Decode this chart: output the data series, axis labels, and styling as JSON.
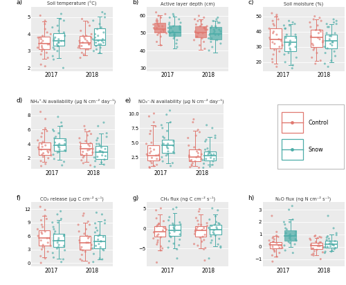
{
  "panels": [
    {
      "label": "a)",
      "title": "Soil temperature (°C)",
      "ylim": [
        1.8,
        5.6
      ],
      "yticks": [
        2.0,
        3.0,
        4.0,
        5.0
      ],
      "control_2017": {
        "median": 3.45,
        "q1": 3.1,
        "q3": 3.85,
        "whislo": 2.55,
        "whishi": 4.75
      },
      "snow_2017": {
        "median": 3.6,
        "q1": 3.3,
        "q3": 4.05,
        "whislo": 2.6,
        "whishi": 4.95
      },
      "control_2018": {
        "median": 3.5,
        "q1": 3.15,
        "q3": 3.9,
        "whislo": 2.75,
        "whishi": 4.8
      },
      "snow_2018": {
        "median": 3.65,
        "q1": 3.35,
        "q3": 4.35,
        "whislo": 2.85,
        "whishi": 5.05
      },
      "shaded_control_2017": false,
      "shaded_snow_2017": false,
      "shaded_control_2018": false,
      "shaded_snow_2018": false,
      "scatter_control_2017": [
        3.8,
        3.4,
        3.2,
        3.6,
        3.0,
        4.1,
        3.5,
        3.3,
        3.7,
        2.8,
        4.3,
        3.1,
        3.9,
        4.0,
        3.2,
        2.6,
        4.6,
        3.4,
        3.8,
        2.9,
        2.2,
        5.1,
        4.8,
        2.1
      ],
      "scatter_snow_2017": [
        3.7,
        3.5,
        3.8,
        3.4,
        3.2,
        4.2,
        3.6,
        3.9,
        3.3,
        4.5,
        3.1,
        4.8,
        3.7,
        3.5,
        4.1,
        2.7,
        5.2,
        3.3,
        2.5,
        4.4,
        3.6,
        3.0,
        4.9,
        2.0
      ],
      "scatter_control_2018": [
        3.6,
        3.3,
        3.8,
        3.5,
        3.1,
        3.9,
        3.4,
        3.7,
        3.2,
        4.0,
        3.6,
        3.8,
        3.3,
        4.2,
        3.5,
        2.9,
        4.7,
        3.1,
        2.6,
        4.5,
        3.4,
        3.9,
        2.8,
        4.9
      ],
      "scatter_snow_2018": [
        3.9,
        3.5,
        4.0,
        3.7,
        3.3,
        4.4,
        3.6,
        4.1,
        3.8,
        3.4,
        4.6,
        3.2,
        4.3,
        3.7,
        3.5,
        3.0,
        5.0,
        3.4,
        2.9,
        5.2,
        4.8,
        3.6,
        3.1,
        5.3
      ]
    },
    {
      "label": "b)",
      "title": "Active layer depth (cm)",
      "ylim": [
        28.0,
        65.0
      ],
      "yticks": [
        30.0,
        40.0,
        50.0,
        60.0
      ],
      "control_2017": {
        "median": 52.5,
        "q1": 50.5,
        "q3": 56.0,
        "whislo": 43.0,
        "whishi": 60.5
      },
      "snow_2017": {
        "median": 50.5,
        "q1": 48.5,
        "q3": 54.5,
        "whislo": 41.0,
        "whishi": 59.5
      },
      "control_2018": {
        "median": 50.5,
        "q1": 47.5,
        "q3": 54.0,
        "whislo": 40.5,
        "whishi": 58.0
      },
      "snow_2018": {
        "median": 49.5,
        "q1": 46.5,
        "q3": 53.5,
        "whislo": 39.0,
        "whishi": 57.0
      },
      "shaded_control_2017": true,
      "shaded_snow_2017": true,
      "shaded_control_2018": true,
      "shaded_snow_2018": true,
      "scatter_control_2017": [
        53,
        51,
        55,
        50,
        57,
        52,
        56,
        49,
        58,
        53,
        51,
        54,
        60,
        50,
        55,
        52,
        48,
        61,
        57,
        54,
        45,
        62,
        43,
        59
      ],
      "scatter_snow_2017": [
        50,
        49,
        53,
        51,
        55,
        48,
        52,
        56,
        47,
        54,
        50,
        53,
        59,
        49,
        54,
        51,
        46,
        60,
        56,
        53,
        42,
        61,
        44,
        58
      ],
      "scatter_control_2018": [
        51,
        48,
        54,
        50,
        55,
        47,
        53,
        57,
        46,
        52,
        50,
        54,
        58,
        48,
        53,
        50,
        45,
        59,
        55,
        52,
        41,
        60,
        43,
        57
      ],
      "scatter_snow_2018": [
        50,
        47,
        53,
        49,
        54,
        46,
        52,
        56,
        45,
        51,
        49,
        53,
        57,
        47,
        52,
        49,
        44,
        58,
        54,
        51,
        40,
        59,
        42,
        56
      ]
    },
    {
      "label": "c)",
      "title": "Soil moisture (%)",
      "ylim": [
        14.0,
        56.0
      ],
      "yticks": [
        20.0,
        30.0,
        40.0,
        50.0
      ],
      "control_2017": {
        "median": 35.0,
        "q1": 29.0,
        "q3": 42.0,
        "whislo": 19.0,
        "whishi": 50.0
      },
      "snow_2017": {
        "median": 33.0,
        "q1": 27.0,
        "q3": 37.0,
        "whislo": 18.0,
        "whishi": 45.0
      },
      "control_2018": {
        "median": 36.0,
        "q1": 30.0,
        "q3": 41.0,
        "whislo": 21.0,
        "whishi": 48.0
      },
      "snow_2018": {
        "median": 34.0,
        "q1": 29.0,
        "q3": 38.0,
        "whislo": 20.0,
        "whishi": 45.0
      },
      "shaded_control_2017": false,
      "shaded_snow_2017": false,
      "shaded_control_2018": false,
      "shaded_snow_2018": false,
      "scatter_control_2017": [
        36,
        30,
        42,
        28,
        45,
        35,
        39,
        25,
        47,
        33,
        38,
        32,
        44,
        31,
        40,
        27,
        50,
        34,
        22,
        48,
        20,
        52,
        17,
        51
      ],
      "scatter_snow_2017": [
        34,
        28,
        38,
        26,
        42,
        32,
        36,
        23,
        44,
        31,
        36,
        30,
        42,
        29,
        38,
        25,
        46,
        32,
        20,
        44,
        18,
        47,
        16,
        45
      ],
      "scatter_control_2018": [
        37,
        31,
        41,
        29,
        44,
        36,
        40,
        26,
        46,
        34,
        39,
        33,
        43,
        32,
        41,
        28,
        49,
        35,
        23,
        47,
        21,
        50,
        19,
        48
      ],
      "scatter_snow_2018": [
        35,
        29,
        39,
        27,
        43,
        33,
        37,
        24,
        45,
        32,
        37,
        31,
        43,
        30,
        39,
        26,
        47,
        33,
        21,
        45,
        19,
        48,
        17,
        46
      ]
    },
    {
      "label": "d)",
      "title": "NH₄⁺-N availability (μg N cm⁻² day⁻¹)",
      "ylim": [
        0.5,
        9.5
      ],
      "yticks": [
        2.0,
        4.0,
        6.0,
        8.0
      ],
      "control_2017": {
        "median": 3.2,
        "q1": 2.5,
        "q3": 4.2,
        "whislo": 1.5,
        "whishi": 6.0
      },
      "snow_2017": {
        "median": 3.8,
        "q1": 3.0,
        "q3": 4.8,
        "whislo": 1.8,
        "whishi": 6.5
      },
      "control_2018": {
        "median": 3.3,
        "q1": 2.5,
        "q3": 4.1,
        "whislo": 1.5,
        "whishi": 5.8
      },
      "snow_2018": {
        "median": 2.8,
        "q1": 1.9,
        "q3": 3.7,
        "whislo": 1.2,
        "whishi": 5.5
      },
      "shaded_control_2017": false,
      "shaded_snow_2017": false,
      "shaded_control_2018": false,
      "shaded_snow_2018": false,
      "scatter_control_2017": [
        3.5,
        2.8,
        4.5,
        2.2,
        5.5,
        3.0,
        4.0,
        2.5,
        5.0,
        3.2,
        3.8,
        2.7,
        4.3,
        2.4,
        3.6,
        2.0,
        6.2,
        3.1,
        1.6,
        5.8,
        0.9,
        8.5,
        7.5,
        1.2
      ],
      "scatter_snow_2017": [
        4.0,
        3.2,
        5.0,
        2.8,
        5.8,
        3.5,
        4.5,
        3.0,
        5.5,
        3.8,
        4.2,
        3.1,
        4.8,
        2.9,
        4.0,
        2.5,
        6.5,
        3.6,
        1.9,
        6.0,
        1.0,
        7.8,
        7.0,
        1.5
      ],
      "scatter_control_2018": [
        3.6,
        2.9,
        4.4,
        2.3,
        5.2,
        3.1,
        4.1,
        2.6,
        4.8,
        3.3,
        3.9,
        2.8,
        4.2,
        2.5,
        3.7,
        2.1,
        5.8,
        3.2,
        1.7,
        5.4,
        1.0,
        6.5,
        6.0,
        1.3
      ],
      "scatter_snow_2018": [
        3.0,
        2.2,
        4.0,
        1.8,
        4.8,
        2.8,
        3.8,
        2.3,
        4.5,
        3.0,
        3.5,
        2.4,
        4.0,
        2.1,
        3.3,
        1.6,
        5.5,
        2.9,
        1.4,
        5.0,
        0.8,
        7.0,
        6.5,
        1.1
      ]
    },
    {
      "label": "e)",
      "title": "NO₃⁻-N availability (μg N cm⁻² day⁻¹)",
      "ylim": [
        0.5,
        11.5
      ],
      "yticks": [
        2.5,
        5.0,
        7.5,
        10.0
      ],
      "control_2017": {
        "median": 2.8,
        "q1": 2.0,
        "q3": 4.5,
        "whislo": 1.0,
        "whishi": 8.0
      },
      "snow_2017": {
        "median": 4.5,
        "q1": 3.2,
        "q3": 5.5,
        "whislo": 1.5,
        "whishi": 8.5
      },
      "control_2018": {
        "median": 2.5,
        "q1": 1.8,
        "q3": 3.8,
        "whislo": 1.0,
        "whishi": 7.0
      },
      "snow_2018": {
        "median": 2.8,
        "q1": 2.0,
        "q3": 3.5,
        "whislo": 1.2,
        "whishi": 6.0
      },
      "shaded_control_2017": false,
      "shaded_snow_2017": false,
      "shaded_control_2018": false,
      "shaded_snow_2018": false,
      "scatter_control_2017": [
        3.0,
        2.2,
        4.8,
        1.5,
        7.0,
        2.8,
        4.0,
        1.8,
        6.5,
        3.2,
        3.8,
        2.4,
        5.0,
        2.1,
        3.5,
        1.2,
        8.5,
        2.9,
        0.8,
        7.8,
        0.7,
        9.5,
        10.0,
        1.0
      ],
      "scatter_snow_2017": [
        4.8,
        3.5,
        5.8,
        2.8,
        7.5,
        4.0,
        5.2,
        3.2,
        7.0,
        4.5,
        4.8,
        3.4,
        6.0,
        3.0,
        4.5,
        2.5,
        8.5,
        4.2,
        1.8,
        8.0,
        1.0,
        9.8,
        10.5,
        1.5
      ],
      "scatter_control_2018": [
        2.8,
        2.0,
        4.2,
        1.5,
        6.2,
        2.5,
        3.8,
        1.8,
        5.8,
        3.0,
        3.5,
        2.2,
        4.5,
        1.9,
        3.2,
        1.2,
        7.2,
        2.7,
        0.8,
        6.8,
        0.7,
        8.5,
        9.0,
        1.0
      ],
      "scatter_snow_2018": [
        3.0,
        2.2,
        3.8,
        1.8,
        5.5,
        2.8,
        3.5,
        2.2,
        5.2,
        3.2,
        3.3,
        2.4,
        4.0,
        2.0,
        3.0,
        1.4,
        6.2,
        3.0,
        0.9,
        5.8,
        0.7,
        7.5,
        8.0,
        1.2
      ]
    },
    {
      "label": "f)",
      "title": "CO₂ release (μg C cm⁻² s⁻¹)",
      "ylim": [
        -0.8,
        13.5
      ],
      "yticks": [
        0.0,
        3.0,
        6.0,
        9.0,
        12.0
      ],
      "control_2017": {
        "median": 5.5,
        "q1": 3.8,
        "q3": 7.2,
        "whislo": 1.2,
        "whishi": 10.5
      },
      "snow_2017": {
        "median": 5.0,
        "q1": 3.5,
        "q3": 6.5,
        "whislo": 0.9,
        "whishi": 9.5
      },
      "control_2018": {
        "median": 4.5,
        "q1": 3.0,
        "q3": 6.0,
        "whislo": 0.5,
        "whishi": 9.0
      },
      "snow_2018": {
        "median": 4.8,
        "q1": 3.2,
        "q3": 6.2,
        "whislo": 0.8,
        "whishi": 9.2
      },
      "shaded_control_2017": false,
      "shaded_snow_2017": false,
      "shaded_control_2018": false,
      "shaded_snow_2018": false,
      "scatter_control_2017": [
        6.0,
        4.5,
        7.5,
        3.5,
        8.5,
        5.5,
        6.8,
        3.0,
        9.5,
        5.0,
        7.0,
        4.0,
        8.0,
        3.8,
        6.5,
        2.5,
        10.5,
        5.5,
        1.5,
        9.8,
        0.0,
        12.5,
        11.8,
        1.0
      ],
      "scatter_snow_2017": [
        5.5,
        4.0,
        7.0,
        3.2,
        8.0,
        5.0,
        6.2,
        2.8,
        9.0,
        4.5,
        6.5,
        3.8,
        7.5,
        3.5,
        6.0,
        2.2,
        9.8,
        5.0,
        1.2,
        9.0,
        0.2,
        10.8,
        11.5,
        0.8
      ],
      "scatter_control_2018": [
        5.0,
        3.5,
        6.5,
        2.8,
        7.5,
        4.5,
        5.8,
        2.5,
        8.5,
        4.0,
        6.0,
        3.2,
        7.0,
        3.0,
        5.5,
        1.8,
        9.2,
        4.5,
        0.8,
        8.5,
        0.0,
        10.5,
        11.0,
        0.5
      ],
      "scatter_snow_2018": [
        5.2,
        3.8,
        6.8,
        3.0,
        7.8,
        4.8,
        6.0,
        2.8,
        8.8,
        4.2,
        6.2,
        3.5,
        7.2,
        3.2,
        5.8,
        2.0,
        9.5,
        4.8,
        1.0,
        8.8,
        0.2,
        10.8,
        11.2,
        0.8
      ]
    },
    {
      "label": "g)",
      "title": "CH₄ flux (ng C cm⁻² s⁻¹)",
      "ylim": [
        -9.5,
        6.5
      ],
      "yticks": [
        -5.0,
        0.0,
        5.0
      ],
      "control_2017": {
        "median": -0.8,
        "q1": -2.0,
        "q3": 0.5,
        "whislo": -5.5,
        "whishi": 3.5
      },
      "snow_2017": {
        "median": -0.5,
        "q1": -1.8,
        "q3": 0.8,
        "whislo": -5.0,
        "whishi": 3.8
      },
      "control_2018": {
        "median": -0.5,
        "q1": -2.0,
        "q3": 0.5,
        "whislo": -5.0,
        "whishi": 3.5
      },
      "snow_2018": {
        "median": -0.3,
        "q1": -1.5,
        "q3": 0.8,
        "whislo": -4.5,
        "whishi": 3.5
      },
      "shaded_control_2017": false,
      "shaded_snow_2017": false,
      "shaded_control_2018": false,
      "shaded_snow_2018": false,
      "scatter_control_2017": [
        -1.0,
        0.2,
        -2.5,
        1.0,
        -3.5,
        -0.5,
        -1.8,
        0.8,
        -4.0,
        0.5,
        -2.2,
        1.2,
        -1.5,
        -0.3,
        -3.0,
        1.8,
        -5.5,
        0.0,
        2.5,
        -5.0,
        -8.5,
        4.5,
        5.0,
        -4.5
      ],
      "scatter_snow_2017": [
        -0.8,
        0.5,
        -2.2,
        1.2,
        -3.2,
        -0.2,
        -1.5,
        1.0,
        -3.8,
        0.8,
        -2.0,
        1.5,
        -1.2,
        0.0,
        -2.8,
        2.0,
        -5.2,
        0.2,
        2.8,
        -4.8,
        -7.5,
        4.8,
        5.2,
        -4.2
      ],
      "scatter_control_2018": [
        -0.8,
        0.3,
        -2.3,
        1.0,
        -3.3,
        -0.4,
        -1.6,
        0.9,
        -3.9,
        0.6,
        -2.1,
        1.3,
        -1.4,
        -0.2,
        -2.9,
        1.9,
        -5.2,
        0.1,
        2.6,
        -4.9,
        -8.0,
        4.2,
        4.8,
        -4.3
      ],
      "scatter_snow_2018": [
        -0.5,
        0.6,
        -2.0,
        1.3,
        -3.0,
        -0.1,
        -1.3,
        1.1,
        -3.6,
        0.9,
        -1.8,
        1.6,
        -1.0,
        0.1,
        -2.6,
        2.2,
        -4.8,
        0.3,
        3.0,
        -4.5,
        -7.5,
        4.5,
        5.0,
        -4.0
      ]
    },
    {
      "label": "h)",
      "title": "N₂O flux (ng N cm⁻² s⁻¹)",
      "ylim": [
        -1.6,
        3.6
      ],
      "yticks": [
        -1.0,
        0.0,
        1.0,
        2.0,
        3.0
      ],
      "control_2017": {
        "median": 0.15,
        "q1": -0.15,
        "q3": 0.4,
        "whislo": -0.8,
        "whishi": 0.9
      },
      "snow_2017": {
        "median": 0.9,
        "q1": 0.5,
        "q3": 1.35,
        "whislo": 0.0,
        "whishi": 2.2
      },
      "control_2018": {
        "median": 0.1,
        "q1": -0.2,
        "q3": 0.3,
        "whislo": -0.7,
        "whishi": 0.7
      },
      "snow_2018": {
        "median": 0.2,
        "q1": -0.05,
        "q3": 0.5,
        "whislo": -0.35,
        "whishi": 1.0
      },
      "shaded_control_2017": false,
      "shaded_snow_2017": true,
      "shaded_control_2018": false,
      "shaded_snow_2018": false,
      "scatter_control_2017": [
        0.2,
        -0.1,
        0.5,
        -0.3,
        0.8,
        0.1,
        0.4,
        -0.2,
        0.7,
        0.0,
        0.3,
        -0.4,
        0.6,
        -0.1,
        0.4,
        -0.5,
        0.9,
        0.1,
        -0.7,
        0.8,
        -1.2,
        2.5,
        1.2,
        -0.8
      ],
      "scatter_snow_2017": [
        1.0,
        0.6,
        1.4,
        0.4,
        1.8,
        0.8,
        1.2,
        0.5,
        2.0,
        0.9,
        1.1,
        0.6,
        1.5,
        0.3,
        1.0,
        0.1,
        2.2,
        0.7,
        -0.3,
        2.0,
        -0.5,
        3.0,
        3.3,
        0.2
      ],
      "scatter_control_2018": [
        0.15,
        -0.15,
        0.4,
        -0.35,
        0.7,
        0.05,
        0.35,
        -0.25,
        0.65,
        -0.05,
        0.25,
        -0.45,
        0.55,
        -0.15,
        0.35,
        -0.55,
        0.8,
        0.05,
        -0.65,
        0.75,
        -1.0,
        0.85,
        0.9,
        -0.7
      ],
      "scatter_snow_2018": [
        0.25,
        0.0,
        0.55,
        -0.2,
        0.85,
        0.15,
        0.45,
        -0.1,
        0.75,
        0.05,
        0.35,
        -0.3,
        0.65,
        -0.05,
        0.45,
        -0.4,
        1.1,
        0.2,
        -0.4,
        0.95,
        -0.5,
        1.5,
        2.5,
        0.1
      ]
    }
  ],
  "control_color": "#E07870",
  "snow_color": "#4DADA8",
  "bg_color": "#EBEBEB",
  "scatter_alpha": 0.65,
  "scatter_size": 5,
  "years": [
    "2017",
    "2018"
  ]
}
